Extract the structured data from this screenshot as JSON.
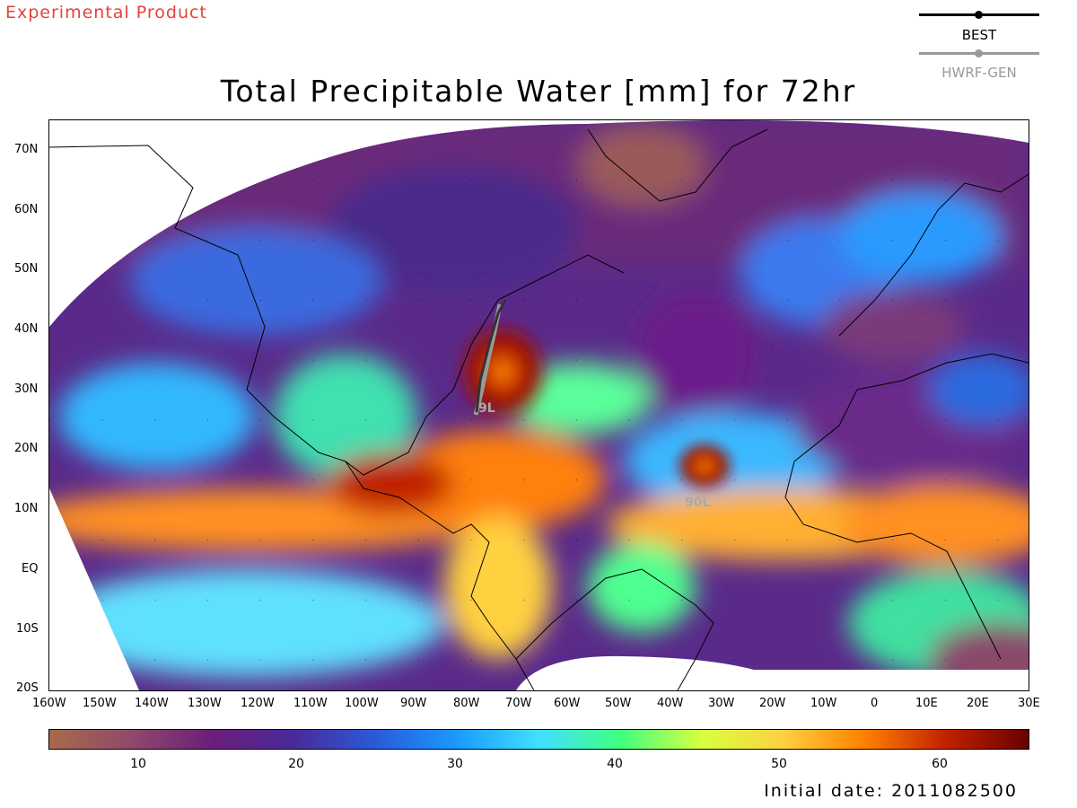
{
  "header": {
    "product_label": "Experimental Product",
    "title": "Total Precipitable Water [mm] for 72hr"
  },
  "legend": {
    "items": [
      {
        "label": "BEST",
        "color": "#000000"
      },
      {
        "label": "HWRF-GEN",
        "color": "#999999"
      }
    ]
  },
  "map": {
    "lat_labels": [
      "70N",
      "60N",
      "50N",
      "40N",
      "30N",
      "20N",
      "10N",
      "EQ",
      "10S",
      "20S"
    ],
    "lon_labels": [
      "160W",
      "150W",
      "140W",
      "130W",
      "120W",
      "110W",
      "100W",
      "90W",
      "80W",
      "70W",
      "60W",
      "50W",
      "40W",
      "30W",
      "20W",
      "10W",
      "0",
      "10E",
      "20E",
      "30E"
    ],
    "storm_labels": [
      {
        "label": "9L",
        "color": "#aaaaaa"
      },
      {
        "label": "90L",
        "color": "#aaaaaa"
      }
    ]
  },
  "colorbar": {
    "unit": "mm",
    "range": [
      4,
      66
    ],
    "ticks": [
      "10",
      "20",
      "30",
      "40",
      "50",
      "60"
    ],
    "stops": [
      "#a86a4a",
      "#8e4a6a",
      "#6a1e7a",
      "#4a2a9a",
      "#2a5ad8",
      "#1a9aff",
      "#40e0ff",
      "#40ff80",
      "#d8ff40",
      "#ffd040",
      "#ff8000",
      "#c02000",
      "#6a0000"
    ]
  },
  "footer": {
    "initial_date": "Initial date: 2011082500"
  }
}
